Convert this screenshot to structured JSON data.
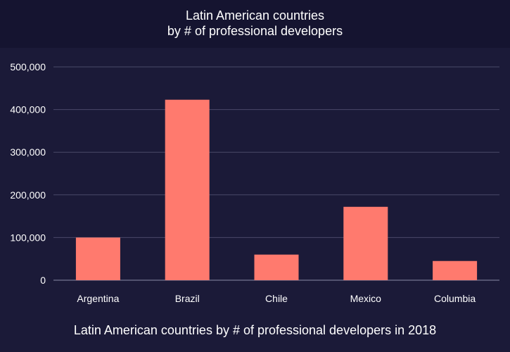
{
  "header": {
    "title_line1": "Latin American countries",
    "title_line2": "by # of professional developers"
  },
  "caption": "Latin American countries by # of professional developers in 2018",
  "colors": {
    "background": "#1b1a38",
    "header_background": "#151430",
    "bar": "#ff7a6e",
    "gridline": "#4a4968",
    "text": "#ffffff"
  },
  "chart_data": {
    "type": "bar",
    "title": "Latin American countries by # of professional developers",
    "categories": [
      "Argentina",
      "Brazil",
      "Chile",
      "Mexico",
      "Columbia"
    ],
    "values": [
      100000,
      423000,
      60000,
      172000,
      45000
    ],
    "y_tick_labels": [
      "0",
      "100,000",
      "200,000",
      "300,000",
      "400,000",
      "500,000"
    ],
    "y_ticks": [
      0,
      100000,
      200000,
      300000,
      400000,
      500000
    ],
    "ylim": [
      0,
      500000
    ],
    "xlabel": "",
    "ylabel": "",
    "grid": true,
    "legend": false
  }
}
